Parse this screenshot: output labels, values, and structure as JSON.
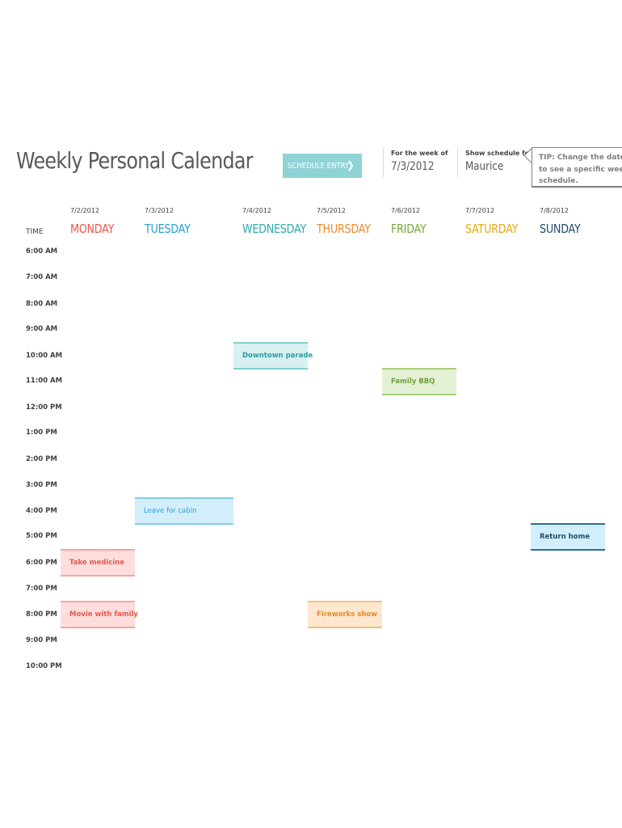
{
  "title": "Weekly Personal Calendar",
  "schedule_button": {
    "label": "SCHEDULE ENTRY",
    "chevron": "❯"
  },
  "week": {
    "label": "For the week of",
    "value": "7/3/2012"
  },
  "person": {
    "label": "Show schedule for:",
    "value": "Maurice"
  },
  "tip": {
    "line1": "TIP: Change the date",
    "line2": "to see a specific wee",
    "line3": "schedule."
  },
  "time_header": "TIME",
  "days": [
    {
      "date": "7/2/2012",
      "name": "MONDAY",
      "color": "#e8574c"
    },
    {
      "date": "7/3/2012",
      "name": "TUESDAY",
      "color": "#27a0d6"
    },
    {
      "date": "7/4/2012",
      "name": "WEDNESDAY",
      "color": "#33a9ae"
    },
    {
      "date": "7/5/2012",
      "name": "THURSDAY",
      "color": "#ef8b2c"
    },
    {
      "date": "7/6/2012",
      "name": "FRIDAY",
      "color": "#78a83e"
    },
    {
      "date": "7/7/2012",
      "name": "SATURDAY",
      "color": "#e8a816"
    },
    {
      "date": "7/8/2012",
      "name": "SUNDAY",
      "color": "#1f4e6b"
    }
  ],
  "times": [
    "6:00 AM",
    "7:00 AM",
    "8:00 AM",
    "9:00 AM",
    "10:00 AM",
    "11:00 AM",
    "12:00 PM",
    "1:00 PM",
    "2:00 PM",
    "3:00 PM",
    "4:00 PM",
    "5:00 PM",
    "6:00 PM",
    "7:00 PM",
    "8:00 PM",
    "9:00 PM",
    "10:00 PM"
  ],
  "events": {
    "downtown_parade": "Downtown parade",
    "family_bbq": "Family BBQ",
    "leave_for_cabin": "Leave for cabin",
    "return_home": "Return home",
    "take_medicine": "Take medicine",
    "movie_with_family": "Movie with family",
    "fireworks_show": "Fireworks show"
  }
}
